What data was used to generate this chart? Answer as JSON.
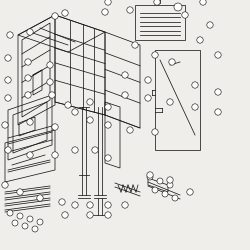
{
  "bg_color": "#f0eeea",
  "line_color": "#1a1a1a",
  "fig_width": 2.5,
  "fig_height": 2.5,
  "dpi": 100
}
